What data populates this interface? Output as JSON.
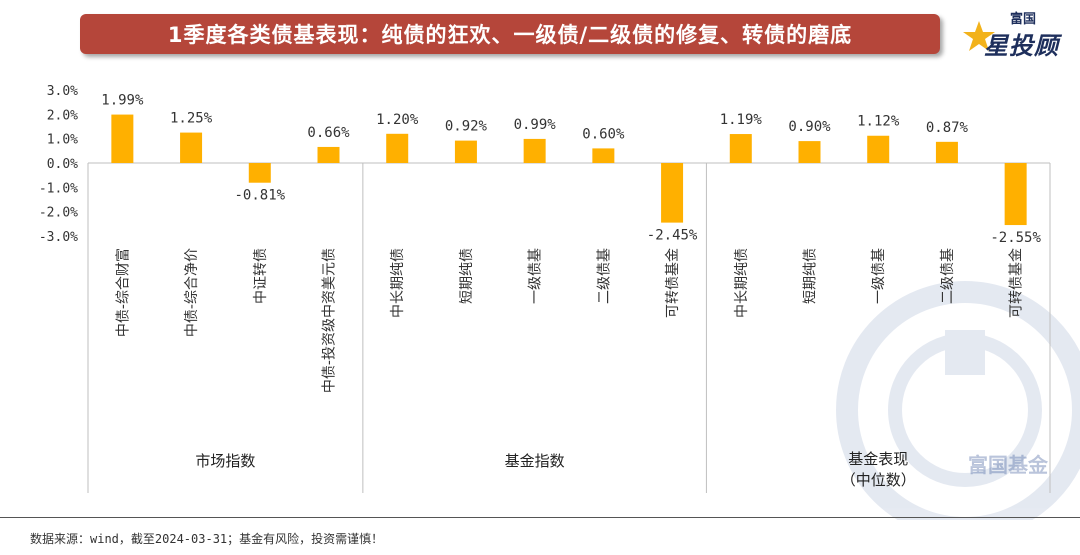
{
  "title": "1季度各类债基表现：纯债的狂欢、一级债/二级债的修复、转债的磨底",
  "logo": {
    "top_text": "富国",
    "main_text": "星投顾",
    "icon": "star-logo-icon"
  },
  "watermark": {
    "text": "富国基金",
    "icon": "coin-watermark-icon"
  },
  "footer": "数据来源：wind，截至2024-03-31；基金有风险，投资需谨慎！",
  "colors": {
    "bar": "#ffb000",
    "banner": "#b5463a",
    "axis": "#bfbfbf",
    "brand": "#1e2f5c"
  },
  "chart_data": {
    "type": "bar",
    "ylim": [
      -3.0,
      3.0
    ],
    "yticks": [
      "3.0%",
      "2.0%",
      "1.0%",
      "0.0%",
      "-1.0%",
      "-2.0%",
      "-3.0%"
    ],
    "ytick_values": [
      3,
      2,
      1,
      0,
      -1,
      -2,
      -3
    ],
    "categories": [
      "中债-综合财富",
      "中债-综合净价",
      "中证转债",
      "中债-投资级中资美元债",
      "中长期纯债",
      "短期纯债",
      "一级债基",
      "二级债基",
      "可转债基金",
      "中长期纯债",
      "短期纯债",
      "一级债基",
      "二级债基",
      "可转债基金"
    ],
    "values": [
      1.99,
      1.25,
      -0.81,
      0.66,
      1.2,
      0.92,
      0.99,
      0.6,
      -2.45,
      1.19,
      0.9,
      1.12,
      0.87,
      -2.55
    ],
    "data_labels": [
      "1.99%",
      "1.25%",
      "-0.81%",
      "0.66%",
      "1.20%",
      "0.92%",
      "0.99%",
      "0.60%",
      "-2.45%",
      "1.19%",
      "0.90%",
      "1.12%",
      "0.87%",
      "-2.55%"
    ],
    "groups": [
      {
        "label": "市场指数",
        "count": 4
      },
      {
        "label": "基金指数",
        "count": 5
      },
      {
        "label": "基金表现\n（中位数）",
        "count": 5
      }
    ]
  }
}
